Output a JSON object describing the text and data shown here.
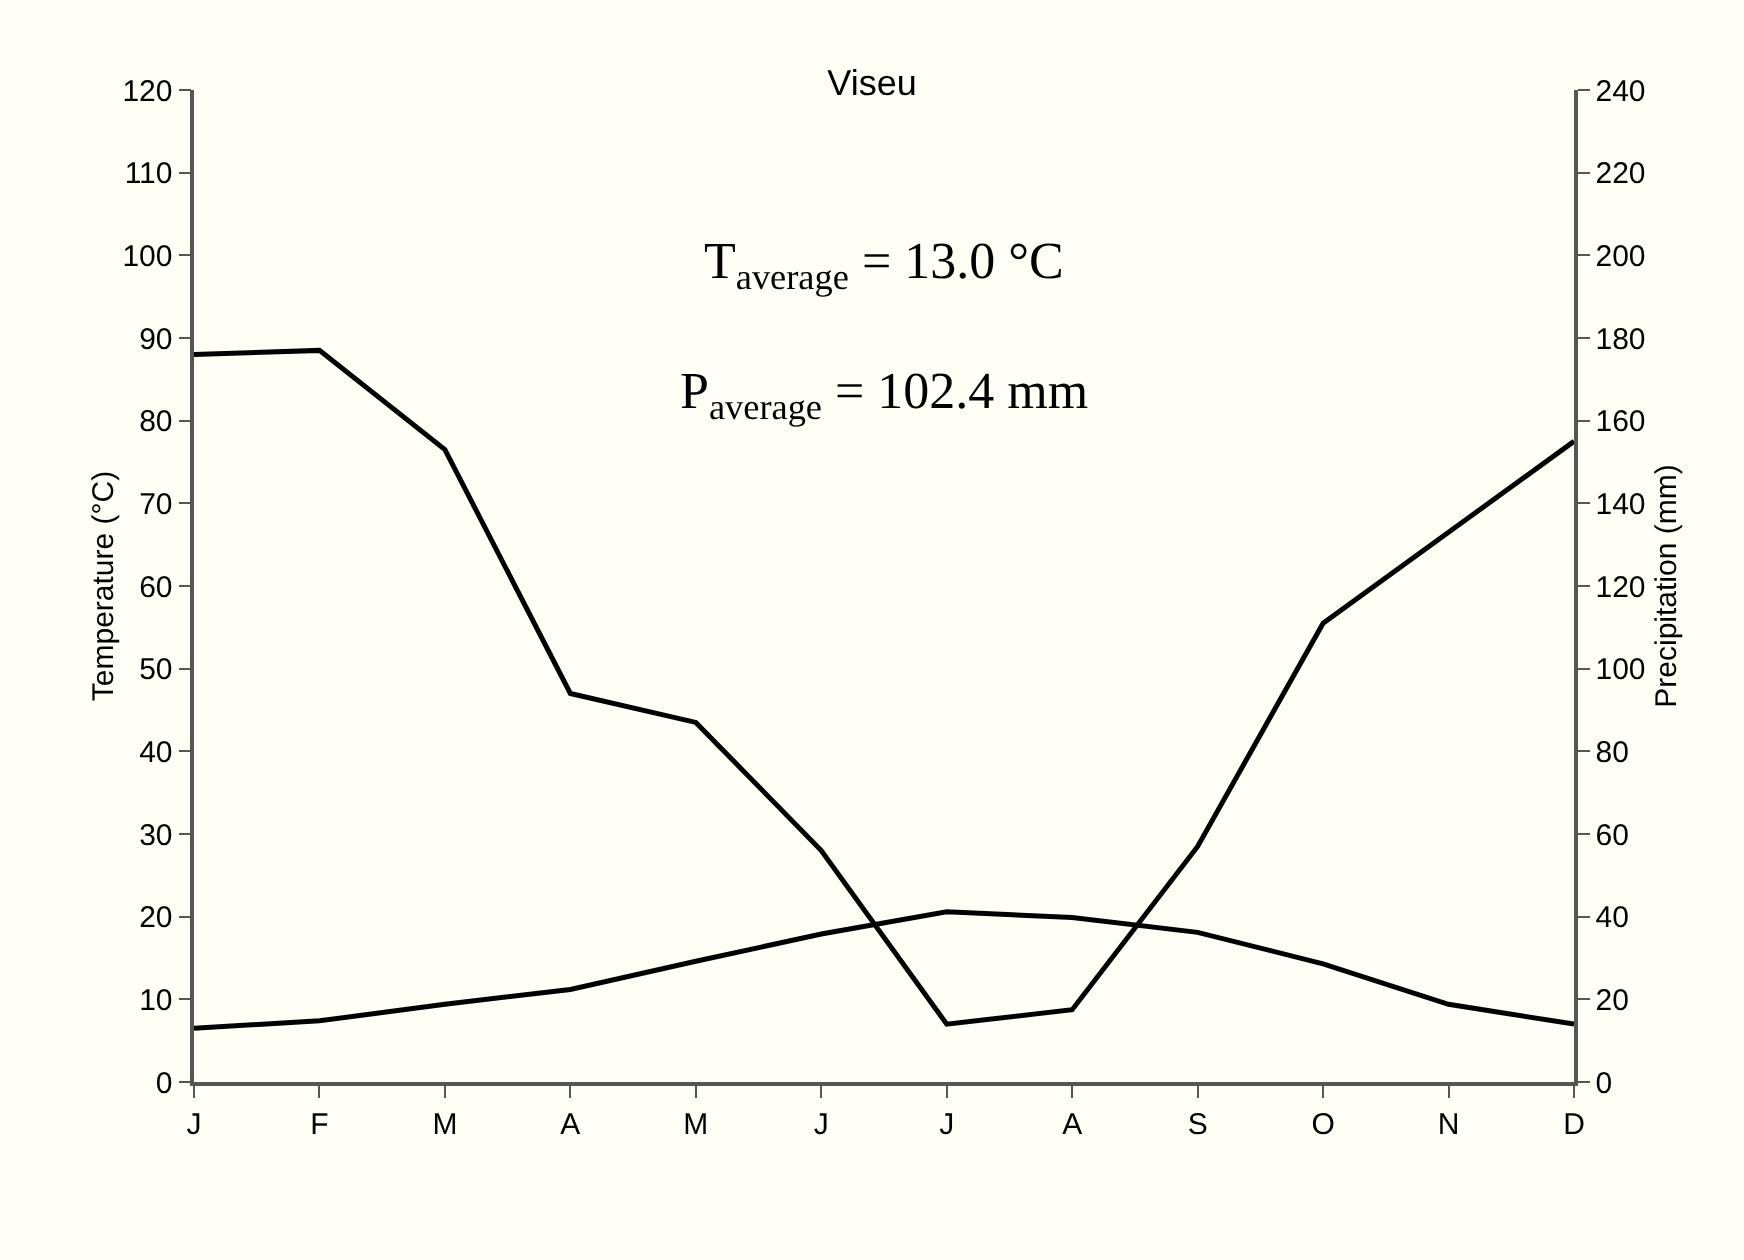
{
  "chart_data": {
    "type": "line",
    "title": "Viseu",
    "ylabel": "Temperature (°C)",
    "y2label": "Precipitation (mm)",
    "annotations": [
      "T$_{average}$ = 13.0 °C",
      "P$_{average}$ = 102.4 mm"
    ],
    "categories": [
      "J",
      "F",
      "M",
      "A",
      "M",
      "J",
      "J",
      "A",
      "S",
      "O",
      "N",
      "D"
    ],
    "series": [
      {
        "color": "#000000",
        "values": [
          6.5,
          7.4,
          9.4,
          11.2,
          14.6,
          17.9,
          20.6,
          19.9,
          18.1,
          14.3,
          9.4,
          7.0
        ]
      },
      {
        "color": "#000000",
        "axis": "y2",
        "values": [
          176,
          177,
          153,
          94,
          87,
          56,
          14,
          17.5,
          57,
          111,
          133,
          155
        ]
      }
    ],
    "ylim": [
      0,
      120
    ],
    "yticks": [
      0,
      10,
      20,
      30,
      40,
      50,
      60,
      70,
      80,
      90,
      100,
      110,
      120
    ],
    "y2lim": [
      0,
      240
    ],
    "y2ticks": [
      0,
      20,
      40,
      60,
      80,
      100,
      120,
      140,
      160,
      180,
      200,
      220,
      240
    ],
    "grid": false,
    "marker": "none",
    "line_style": "solid"
  }
}
